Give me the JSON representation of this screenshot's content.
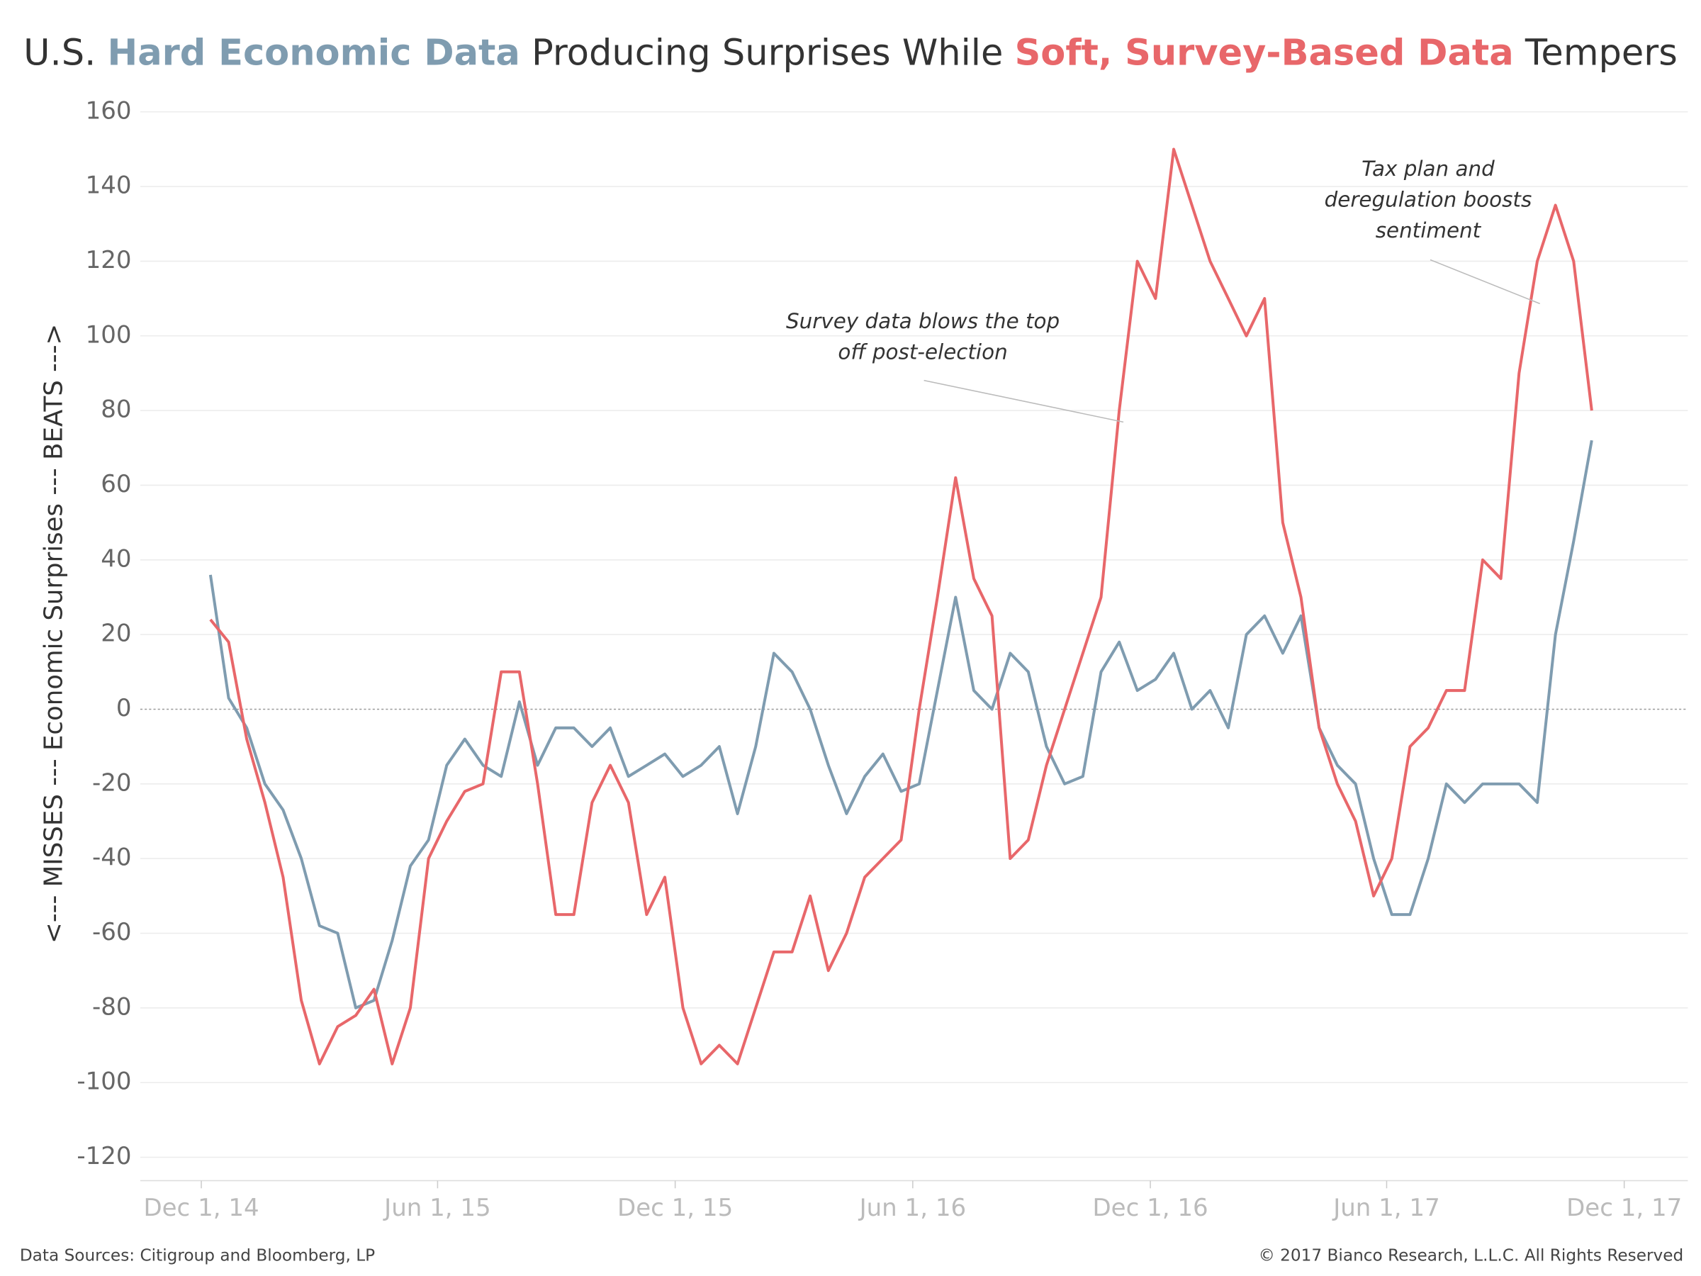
{
  "chart_data": {
    "type": "line",
    "title_parts": [
      "U.S. ",
      "Hard Economic Data",
      " Producing Surprises While ",
      "Soft, Survey-Based Data",
      " Tempers"
    ],
    "y_label": "<--- MISSES --- Economic Surprises --- BEATS --->",
    "source": "Data Sources: Citigroup and Bloomberg, LP",
    "copyright": "© 2017 Bianco Research, L.L.C. All Rights Reserved",
    "annotations": [
      {
        "lines": [
          "Survey data blows the top",
          "off post-election"
        ]
      },
      {
        "lines": [
          "Tax plan and",
          "deregulation boosts",
          "sentiment"
        ]
      }
    ],
    "x": [
      "2014-12-08",
      "2014-12-22",
      "2015-01-05",
      "2015-01-19",
      "2015-02-02",
      "2015-02-16",
      "2015-03-02",
      "2015-03-16",
      "2015-03-30",
      "2015-04-13",
      "2015-04-27",
      "2015-05-11",
      "2015-05-25",
      "2015-06-08",
      "2015-06-22",
      "2015-07-06",
      "2015-07-20",
      "2015-08-03",
      "2015-08-17",
      "2015-08-31",
      "2015-09-14",
      "2015-09-28",
      "2015-10-12",
      "2015-10-26",
      "2015-11-09",
      "2015-11-23",
      "2015-12-07",
      "2015-12-21",
      "2016-01-04",
      "2016-01-18",
      "2016-02-01",
      "2016-02-15",
      "2016-02-29",
      "2016-03-14",
      "2016-03-28",
      "2016-04-11",
      "2016-04-25",
      "2016-05-09",
      "2016-05-23",
      "2016-06-06",
      "2016-06-20",
      "2016-07-04",
      "2016-07-18",
      "2016-08-01",
      "2016-08-15",
      "2016-08-29",
      "2016-09-12",
      "2016-09-26",
      "2016-10-10",
      "2016-10-24",
      "2016-11-07",
      "2016-11-21",
      "2016-12-05",
      "2016-12-19",
      "2017-01-02",
      "2017-01-16",
      "2017-01-30",
      "2017-02-13",
      "2017-02-27",
      "2017-03-13",
      "2017-03-27",
      "2017-04-10",
      "2017-04-24",
      "2017-05-08",
      "2017-05-22",
      "2017-06-05",
      "2017-06-19",
      "2017-07-03",
      "2017-07-17",
      "2017-07-31",
      "2017-08-14",
      "2017-08-28",
      "2017-09-11",
      "2017-09-25",
      "2017-10-09",
      "2017-10-23",
      "2017-11-06"
    ],
    "series": [
      {
        "name": "Hard Economic Data",
        "color": "#7f9cb0",
        "values": [
          36,
          3,
          -5,
          -20,
          -27,
          -40,
          -58,
          -60,
          -80,
          -78,
          -62,
          -42,
          -35,
          -15,
          -8,
          -15,
          -18,
          2,
          -15,
          -5,
          -5,
          -10,
          -5,
          -18,
          -15,
          -12,
          -18,
          -15,
          -10,
          -28,
          -10,
          15,
          10,
          0,
          -15,
          -28,
          -18,
          -12,
          -22,
          -20,
          5,
          30,
          5,
          0,
          15,
          10,
          -10,
          -20,
          -18,
          10,
          18,
          5,
          8,
          15,
          0,
          5,
          -5,
          20,
          25,
          15,
          25,
          -5,
          -15,
          -20,
          -40,
          -55,
          -55,
          -40,
          -20,
          -25,
          -20,
          -20,
          -20,
          -25,
          20,
          45,
          72
        ]
      },
      {
        "name": "Soft, Survey-Based Data",
        "color": "#e8676a",
        "values": [
          24,
          18,
          -8,
          -25,
          -45,
          -78,
          -95,
          -85,
          -82,
          -75,
          -95,
          -80,
          -40,
          -30,
          -22,
          -20,
          10,
          10,
          -20,
          -55,
          -55,
          -25,
          -15,
          -25,
          -55,
          -45,
          -80,
          -95,
          -90,
          -95,
          -80,
          -65,
          -65,
          -50,
          -70,
          -60,
          -45,
          -40,
          -35,
          0,
          30,
          62,
          35,
          25,
          -40,
          -35,
          -15,
          0,
          15,
          30,
          80,
          120,
          110,
          150,
          135,
          120,
          110,
          100,
          110,
          50,
          30,
          -5,
          -20,
          -30,
          -50,
          -40,
          -10,
          -5,
          5,
          5,
          40,
          35,
          90,
          120,
          135,
          120,
          80
        ]
      }
    ],
    "xlim": [
      "2014-10-15",
      "2018-01-19"
    ],
    "xticks": [
      {
        "value": "2014-12-01",
        "label": "Dec 1, 14"
      },
      {
        "value": "2015-06-01",
        "label": "Jun 1, 15"
      },
      {
        "value": "2015-12-01",
        "label": "Dec 1, 15"
      },
      {
        "value": "2016-06-01",
        "label": "Jun 1, 16"
      },
      {
        "value": "2016-12-01",
        "label": "Dec 1, 16"
      },
      {
        "value": "2017-06-01",
        "label": "Jun 1, 17"
      },
      {
        "value": "2017-12-01",
        "label": "Dec 1, 17"
      }
    ],
    "ylim": [
      -124.5,
      165
    ],
    "yticks": [
      -120,
      -100,
      -80,
      -60,
      -40,
      -20,
      0,
      20,
      40,
      60,
      80,
      100,
      120,
      140,
      160
    ],
    "grid": true
  }
}
